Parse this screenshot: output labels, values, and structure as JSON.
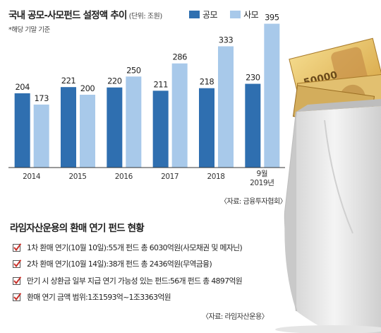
{
  "header": {
    "title": "국내 공모-사모펀드 설정액 추이",
    "unit": "(단위: 조원)",
    "note": "*해당 기말 기준"
  },
  "colors": {
    "public": "#2f6fb0",
    "private": "#a8c9ea",
    "check": "#c8322b"
  },
  "chart_data": {
    "type": "bar",
    "categories": [
      "2014",
      "2015",
      "2016",
      "2017",
      "2018",
      "9월\n2019년"
    ],
    "series": [
      {
        "name": "공모",
        "values": [
          204,
          221,
          220,
          211,
          218,
          230
        ]
      },
      {
        "name": "사모",
        "values": [
          173,
          200,
          250,
          286,
          333,
          395
        ]
      }
    ],
    "legend_position": "top",
    "grid": false,
    "source": "〈자료: 금융투자협회〉"
  },
  "section": {
    "title": "라임자산운용의 환매 연기 펀드 현황",
    "items": [
      {
        "head": "1차 환매 연기(10월 10일):",
        "body": " 55개 펀드 총 6030억원(사모채권 및 메자닌)"
      },
      {
        "head": "2차 환매 연기(10월 14일):",
        "body": " 38개 펀드 총 2436억원(무역금융)"
      },
      {
        "head": "만기 시 상환금 일부 지급 연기 가능성 있는 펀드:",
        "body": " 56개 펀드 총 4897억원"
      },
      {
        "head": "환매 연기 금액 범위:",
        "body": " 1조1593억~1조3363억원"
      }
    ],
    "source": "〈자료: 라임자산운용〉"
  },
  "illustration": {
    "banknote_text": "50000"
  }
}
